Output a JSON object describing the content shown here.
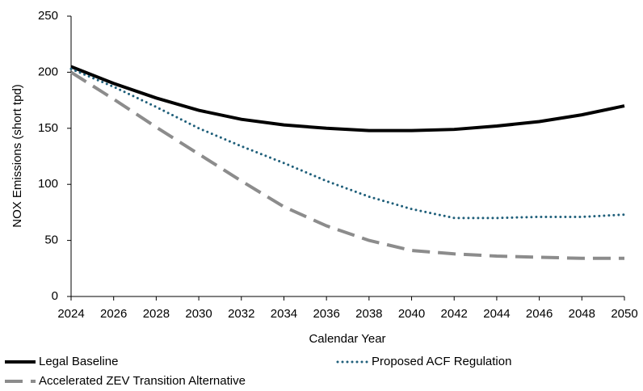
{
  "chart_data": {
    "type": "line",
    "xlabel": "Calendar Year",
    "ylabel": "NOX Emissions (short tpd)",
    "x": [
      2024,
      2026,
      2028,
      2030,
      2032,
      2034,
      2036,
      2038,
      2040,
      2042,
      2044,
      2046,
      2048,
      2050
    ],
    "series": [
      {
        "name": "Legal Baseline",
        "color": "#000000",
        "line_style": "solid",
        "values": [
          205,
          190,
          177,
          166,
          158,
          153,
          150,
          148,
          148,
          149,
          152,
          156,
          162,
          170
        ]
      },
      {
        "name": "Proposed ACF Regulation",
        "color": "#1f5f7a",
        "line_style": "dotted",
        "values": [
          203,
          187,
          169,
          150,
          134,
          119,
          103,
          89,
          78,
          70,
          70,
          71,
          71,
          73
        ]
      },
      {
        "name": "Accelerated ZEV Transition Alternative",
        "color": "#8c8c8c",
        "line_style": "dashed",
        "values": [
          200,
          176,
          151,
          127,
          103,
          80,
          63,
          50,
          41,
          38,
          36,
          35,
          34,
          34
        ]
      }
    ],
    "xlim": [
      2024,
      2050
    ],
    "xticks": [
      2024,
      2026,
      2028,
      2030,
      2032,
      2034,
      2036,
      2038,
      2040,
      2042,
      2044,
      2046,
      2048,
      2050
    ],
    "ylim": [
      0,
      250
    ],
    "yticks": [
      0,
      50,
      100,
      150,
      200,
      250
    ],
    "grid": false,
    "legend": "bottom"
  }
}
